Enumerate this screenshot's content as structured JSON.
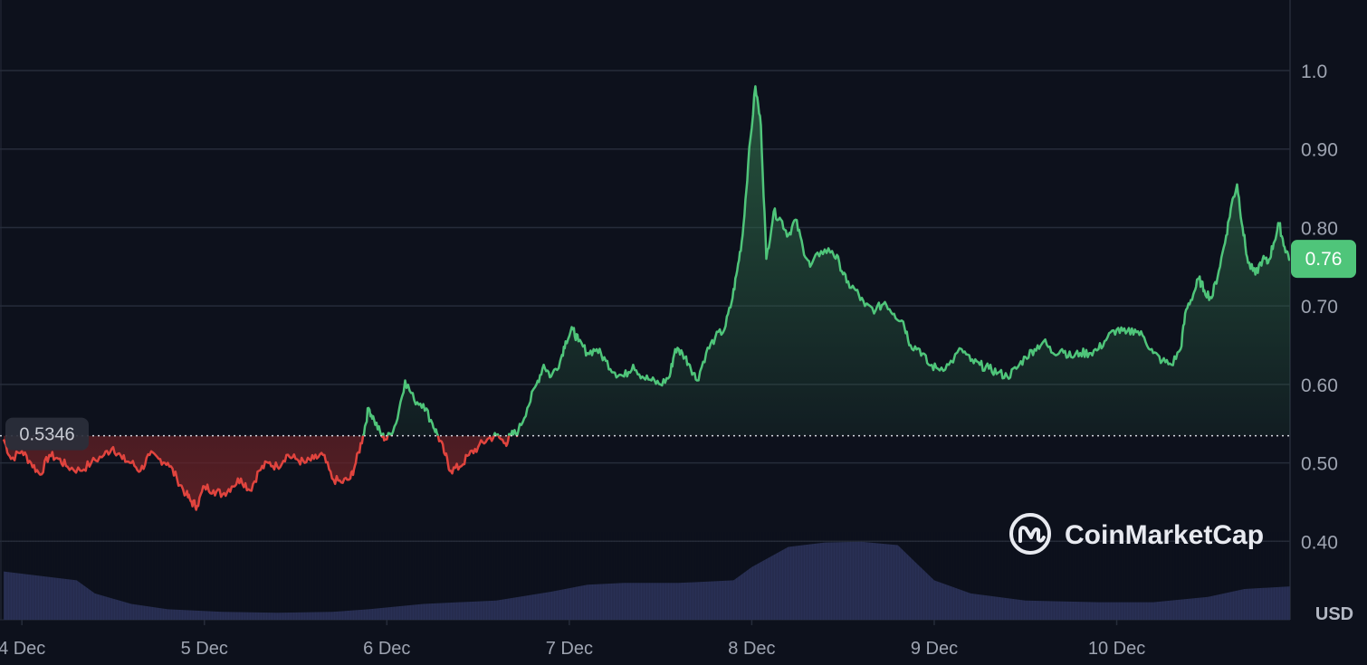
{
  "chart_data": {
    "type": "area",
    "title": "",
    "xlabel": "",
    "ylabel": "USD",
    "currency_label": "USD",
    "ylim": [
      0.3,
      1.09
    ],
    "y_ticks": [
      {
        "value": 0.4,
        "label": "0.40"
      },
      {
        "value": 0.5,
        "label": "0.50"
      },
      {
        "value": 0.6,
        "label": "0.60"
      },
      {
        "value": 0.7,
        "label": "0.70"
      },
      {
        "value": 0.8,
        "label": "0.80"
      },
      {
        "value": 0.9,
        "label": "0.90"
      },
      {
        "value": 1.0,
        "label": "1.0"
      }
    ],
    "x_ticks": [
      {
        "t": 0.1,
        "label": "4 Dec"
      },
      {
        "t": 1.1,
        "label": "5 Dec"
      },
      {
        "t": 2.1,
        "label": "6 Dec"
      },
      {
        "t": 3.1,
        "label": "7 Dec"
      },
      {
        "t": 4.1,
        "label": "8 Dec"
      },
      {
        "t": 5.1,
        "label": "9 Dec"
      },
      {
        "t": 6.1,
        "label": "10 Dec"
      }
    ],
    "t_range": [
      -0.02,
      7.05
    ],
    "reference_price": {
      "value": 0.5346,
      "label": "0.5346"
    },
    "current_price": {
      "value": 0.76,
      "label": "0.76"
    },
    "colors": {
      "up": "#4fc57a",
      "down": "#e0443e",
      "up_fill_top": "#2e6a48",
      "down_fill_top": "#6b2226",
      "volume": "#2b3358",
      "grid": "#262c3a",
      "axis_text": "#9ea4b1",
      "background": "#0d111c",
      "price_badge": "#4fc57a",
      "ref_badge": "#2a2f3b"
    },
    "series": [
      {
        "values": [
          [
            0.0,
            0.53
          ],
          [
            0.04,
            0.505
          ],
          [
            0.1,
            0.515
          ],
          [
            0.15,
            0.5
          ],
          [
            0.2,
            0.485
          ],
          [
            0.25,
            0.51
          ],
          [
            0.3,
            0.505
          ],
          [
            0.35,
            0.495
          ],
          [
            0.42,
            0.49
          ],
          [
            0.48,
            0.5
          ],
          [
            0.55,
            0.51
          ],
          [
            0.6,
            0.52
          ],
          [
            0.65,
            0.505
          ],
          [
            0.7,
            0.5
          ],
          [
            0.75,
            0.49
          ],
          [
            0.8,
            0.51
          ],
          [
            0.85,
            0.505
          ],
          [
            0.9,
            0.5
          ],
          [
            0.95,
            0.48
          ],
          [
            1.0,
            0.46
          ],
          [
            1.03,
            0.45
          ],
          [
            1.06,
            0.445
          ],
          [
            1.1,
            0.47
          ],
          [
            1.15,
            0.465
          ],
          [
            1.2,
            0.46
          ],
          [
            1.25,
            0.47
          ],
          [
            1.3,
            0.48
          ],
          [
            1.35,
            0.465
          ],
          [
            1.4,
            0.49
          ],
          [
            1.45,
            0.5
          ],
          [
            1.5,
            0.495
          ],
          [
            1.55,
            0.51
          ],
          [
            1.6,
            0.505
          ],
          [
            1.65,
            0.5
          ],
          [
            1.7,
            0.505
          ],
          [
            1.75,
            0.51
          ],
          [
            1.8,
            0.48
          ],
          [
            1.85,
            0.475
          ],
          [
            1.9,
            0.48
          ],
          [
            1.93,
            0.5
          ],
          [
            1.97,
            0.5346
          ],
          [
            2.0,
            0.57
          ],
          [
            2.03,
            0.555
          ],
          [
            2.07,
            0.535
          ],
          [
            2.1,
            0.53
          ],
          [
            2.15,
            0.55
          ],
          [
            2.2,
            0.605
          ],
          [
            2.25,
            0.58
          ],
          [
            2.3,
            0.575
          ],
          [
            2.35,
            0.55
          ],
          [
            2.38,
            0.535
          ],
          [
            2.42,
            0.51
          ],
          [
            2.45,
            0.49
          ],
          [
            2.5,
            0.495
          ],
          [
            2.55,
            0.51
          ],
          [
            2.6,
            0.52
          ],
          [
            2.65,
            0.53
          ],
          [
            2.7,
            0.535
          ],
          [
            2.75,
            0.525
          ],
          [
            2.78,
            0.535
          ],
          [
            2.82,
            0.54
          ],
          [
            2.87,
            0.57
          ],
          [
            2.92,
            0.6
          ],
          [
            2.96,
            0.625
          ],
          [
            3.0,
            0.61
          ],
          [
            3.05,
            0.63
          ],
          [
            3.08,
            0.655
          ],
          [
            3.12,
            0.67
          ],
          [
            3.15,
            0.655
          ],
          [
            3.2,
            0.64
          ],
          [
            3.25,
            0.645
          ],
          [
            3.3,
            0.63
          ],
          [
            3.35,
            0.615
          ],
          [
            3.4,
            0.61
          ],
          [
            3.45,
            0.625
          ],
          [
            3.5,
            0.61
          ],
          [
            3.55,
            0.605
          ],
          [
            3.6,
            0.6
          ],
          [
            3.65,
            0.61
          ],
          [
            3.68,
            0.645
          ],
          [
            3.72,
            0.64
          ],
          [
            3.76,
            0.625
          ],
          [
            3.8,
            0.605
          ],
          [
            3.85,
            0.64
          ],
          [
            3.9,
            0.66
          ],
          [
            3.95,
            0.67
          ],
          [
            3.99,
            0.705
          ],
          [
            4.02,
            0.745
          ],
          [
            4.05,
            0.79
          ],
          [
            4.08,
            0.88
          ],
          [
            4.12,
            0.98
          ],
          [
            4.15,
            0.93
          ],
          [
            4.18,
            0.76
          ],
          [
            4.22,
            0.82
          ],
          [
            4.26,
            0.81
          ],
          [
            4.3,
            0.79
          ],
          [
            4.34,
            0.81
          ],
          [
            4.38,
            0.775
          ],
          [
            4.42,
            0.75
          ],
          [
            4.48,
            0.77
          ],
          [
            4.54,
            0.77
          ],
          [
            4.58,
            0.755
          ],
          [
            4.62,
            0.73
          ],
          [
            4.67,
            0.72
          ],
          [
            4.72,
            0.7
          ],
          [
            4.78,
            0.695
          ],
          [
            4.83,
            0.705
          ],
          [
            4.88,
            0.69
          ],
          [
            4.93,
            0.68
          ],
          [
            4.97,
            0.65
          ],
          [
            5.02,
            0.645
          ],
          [
            5.07,
            0.625
          ],
          [
            5.12,
            0.62
          ],
          [
            5.18,
            0.625
          ],
          [
            5.25,
            0.645
          ],
          [
            5.3,
            0.63
          ],
          [
            5.35,
            0.625
          ],
          [
            5.4,
            0.62
          ],
          [
            5.45,
            0.615
          ],
          [
            5.5,
            0.61
          ],
          [
            5.55,
            0.62
          ],
          [
            5.6,
            0.635
          ],
          [
            5.65,
            0.645
          ],
          [
            5.7,
            0.655
          ],
          [
            5.75,
            0.64
          ],
          [
            5.8,
            0.645
          ],
          [
            5.85,
            0.635
          ],
          [
            5.9,
            0.64
          ],
          [
            5.95,
            0.64
          ],
          [
            6.0,
            0.645
          ],
          [
            6.05,
            0.66
          ],
          [
            6.1,
            0.67
          ],
          [
            6.15,
            0.665
          ],
          [
            6.2,
            0.67
          ],
          [
            6.25,
            0.66
          ],
          [
            6.3,
            0.64
          ],
          [
            6.35,
            0.63
          ],
          [
            6.4,
            0.625
          ],
          [
            6.45,
            0.645
          ],
          [
            6.48,
            0.695
          ],
          [
            6.52,
            0.715
          ],
          [
            6.55,
            0.735
          ],
          [
            6.58,
            0.72
          ],
          [
            6.62,
            0.71
          ],
          [
            6.66,
            0.745
          ],
          [
            6.7,
            0.79
          ],
          [
            6.73,
            0.83
          ],
          [
            6.76,
            0.855
          ],
          [
            6.79,
            0.8
          ],
          [
            6.82,
            0.755
          ],
          [
            6.86,
            0.74
          ],
          [
            6.9,
            0.76
          ],
          [
            6.93,
            0.755
          ],
          [
            6.96,
            0.78
          ],
          [
            6.99,
            0.805
          ],
          [
            7.02,
            0.775
          ],
          [
            7.05,
            0.76
          ]
        ]
      }
    ],
    "volume": {
      "values": [
        [
          0.0,
          0.55
        ],
        [
          0.2,
          0.5
        ],
        [
          0.4,
          0.45
        ],
        [
          0.5,
          0.3
        ],
        [
          0.7,
          0.18
        ],
        [
          0.9,
          0.12
        ],
        [
          1.2,
          0.09
        ],
        [
          1.5,
          0.08
        ],
        [
          1.8,
          0.09
        ],
        [
          2.0,
          0.12
        ],
        [
          2.3,
          0.18
        ],
        [
          2.7,
          0.22
        ],
        [
          3.0,
          0.32
        ],
        [
          3.2,
          0.4
        ],
        [
          3.4,
          0.42
        ],
        [
          3.7,
          0.42
        ],
        [
          4.0,
          0.45
        ],
        [
          4.1,
          0.6
        ],
        [
          4.3,
          0.83
        ],
        [
          4.5,
          0.88
        ],
        [
          4.7,
          0.89
        ],
        [
          4.9,
          0.85
        ],
        [
          5.0,
          0.65
        ],
        [
          5.1,
          0.45
        ],
        [
          5.3,
          0.3
        ],
        [
          5.6,
          0.22
        ],
        [
          6.0,
          0.2
        ],
        [
          6.3,
          0.2
        ],
        [
          6.6,
          0.26
        ],
        [
          6.8,
          0.35
        ],
        [
          7.05,
          0.38
        ]
      ]
    }
  },
  "watermark": {
    "text": "CoinMarketCap",
    "icon": "coinmarketcap-logo-icon"
  }
}
